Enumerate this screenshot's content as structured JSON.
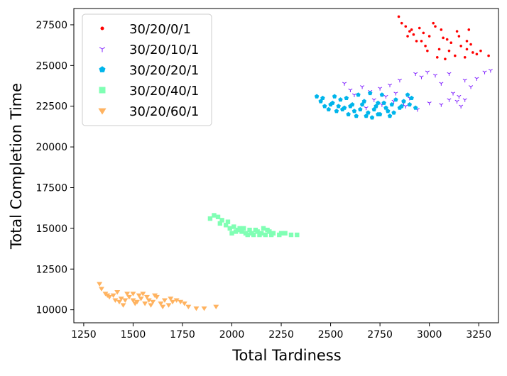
{
  "chart_data": {
    "type": "scatter",
    "title": "",
    "xlabel": "Total Tardiness",
    "ylabel": "Total Completion Time",
    "xlim": [
      1200,
      3350
    ],
    "ylim": [
      9200,
      28500
    ],
    "xticks": [
      1250,
      1500,
      1750,
      2000,
      2250,
      2500,
      2750,
      3000,
      3250
    ],
    "yticks": [
      10000,
      12500,
      15000,
      17500,
      20000,
      22500,
      25000,
      27500
    ],
    "grid": false,
    "legend_position": "top-left",
    "series": [
      {
        "name": "30/20/0/1",
        "color": "#ff0000",
        "marker": "point",
        "points": [
          [
            2845,
            28000
          ],
          [
            2860,
            27600
          ],
          [
            2880,
            27400
          ],
          [
            2900,
            27100
          ],
          [
            2920,
            26900
          ],
          [
            2950,
            27300
          ],
          [
            2970,
            27000
          ],
          [
            3000,
            26800
          ],
          [
            3030,
            27400
          ],
          [
            3060,
            27200
          ],
          [
            3090,
            26600
          ],
          [
            3110,
            26400
          ],
          [
            3140,
            27100
          ],
          [
            3160,
            26200
          ],
          [
            3190,
            26000
          ],
          [
            3220,
            25800
          ],
          [
            3240,
            25700
          ],
          [
            3260,
            25900
          ],
          [
            3300,
            25600
          ],
          [
            3020,
            27600
          ],
          [
            2935,
            26500
          ],
          [
            2980,
            26200
          ],
          [
            3050,
            26000
          ],
          [
            3100,
            25900
          ],
          [
            3180,
            25500
          ],
          [
            3210,
            26300
          ],
          [
            2890,
            26800
          ],
          [
            2960,
            26500
          ],
          [
            3070,
            26700
          ],
          [
            3130,
            25600
          ],
          [
            3150,
            26800
          ],
          [
            2990,
            25900
          ],
          [
            3040,
            25500
          ],
          [
            3080,
            25400
          ],
          [
            2910,
            27200
          ],
          [
            3200,
            27200
          ],
          [
            3190,
            26500
          ]
        ]
      },
      {
        "name": "30/20/10/1",
        "color": "#7f1fff",
        "marker": "tri_down",
        "points": [
          [
            2570,
            23900
          ],
          [
            2600,
            23500
          ],
          [
            2620,
            23200
          ],
          [
            2660,
            23700
          ],
          [
            2700,
            23400
          ],
          [
            2720,
            22900
          ],
          [
            2750,
            23600
          ],
          [
            2780,
            23100
          ],
          [
            2800,
            23800
          ],
          [
            2830,
            23300
          ],
          [
            2850,
            24100
          ],
          [
            2870,
            22700
          ],
          [
            2900,
            23000
          ],
          [
            2930,
            24500
          ],
          [
            2960,
            24300
          ],
          [
            2990,
            24600
          ],
          [
            3030,
            24400
          ],
          [
            3060,
            23900
          ],
          [
            3100,
            24500
          ],
          [
            3120,
            23300
          ],
          [
            3150,
            23100
          ],
          [
            3180,
            24100
          ],
          [
            3210,
            23700
          ],
          [
            3240,
            24200
          ],
          [
            3280,
            24600
          ],
          [
            3310,
            24700
          ],
          [
            3000,
            22700
          ],
          [
            3060,
            22600
          ],
          [
            3100,
            22900
          ],
          [
            3140,
            22800
          ],
          [
            3160,
            22500
          ],
          [
            3180,
            22900
          ],
          [
            2680,
            22400
          ],
          [
            2760,
            22600
          ],
          [
            2820,
            22800
          ],
          [
            2880,
            22500
          ],
          [
            2940,
            22300
          ]
        ]
      },
      {
        "name": "30/20/20/1",
        "color": "#00b5eb",
        "marker": "pentagon",
        "points": [
          [
            2430,
            23100
          ],
          [
            2450,
            22800
          ],
          [
            2470,
            22500
          ],
          [
            2490,
            22300
          ],
          [
            2510,
            22700
          ],
          [
            2530,
            22200
          ],
          [
            2550,
            22900
          ],
          [
            2570,
            22400
          ],
          [
            2590,
            22000
          ],
          [
            2610,
            22600
          ],
          [
            2630,
            21900
          ],
          [
            2650,
            22300
          ],
          [
            2670,
            22800
          ],
          [
            2690,
            22100
          ],
          [
            2710,
            21800
          ],
          [
            2730,
            22500
          ],
          [
            2750,
            22000
          ],
          [
            2770,
            22700
          ],
          [
            2790,
            22200
          ],
          [
            2810,
            22600
          ],
          [
            2830,
            22900
          ],
          [
            2850,
            22400
          ],
          [
            2870,
            22800
          ],
          [
            2890,
            23200
          ],
          [
            2910,
            23000
          ],
          [
            2930,
            22400
          ],
          [
            2460,
            23000
          ],
          [
            2520,
            23100
          ],
          [
            2580,
            23000
          ],
          [
            2640,
            23200
          ],
          [
            2700,
            23300
          ],
          [
            2760,
            23200
          ],
          [
            2540,
            22500
          ],
          [
            2600,
            22500
          ],
          [
            2660,
            22600
          ],
          [
            2720,
            22300
          ],
          [
            2780,
            22400
          ],
          [
            2820,
            22100
          ],
          [
            2500,
            22600
          ],
          [
            2620,
            22200
          ],
          [
            2680,
            21900
          ],
          [
            2740,
            22000
          ],
          [
            2800,
            21900
          ],
          [
            2740,
            22700
          ],
          [
            2560,
            22300
          ],
          [
            2860,
            22500
          ],
          [
            2900,
            22600
          ]
        ]
      },
      {
        "name": "30/20/40/1",
        "color": "#80ffb4",
        "marker": "square",
        "points": [
          [
            1890,
            15600
          ],
          [
            1910,
            15800
          ],
          [
            1930,
            15700
          ],
          [
            1950,
            15500
          ],
          [
            1970,
            15200
          ],
          [
            1990,
            15000
          ],
          [
            2010,
            15100
          ],
          [
            2030,
            14900
          ],
          [
            2050,
            14800
          ],
          [
            2070,
            14700
          ],
          [
            2090,
            14900
          ],
          [
            2110,
            14600
          ],
          [
            2130,
            14800
          ],
          [
            2150,
            14700
          ],
          [
            2170,
            14600
          ],
          [
            2190,
            14800
          ],
          [
            2210,
            14700
          ],
          [
            2240,
            14600
          ],
          [
            2270,
            14700
          ],
          [
            2300,
            14600
          ],
          [
            2330,
            14600
          ],
          [
            1940,
            15300
          ],
          [
            1980,
            15400
          ],
          [
            2000,
            14700
          ],
          [
            2060,
            15000
          ],
          [
            2120,
            14900
          ],
          [
            2160,
            15000
          ],
          [
            2200,
            14600
          ],
          [
            2080,
            14600
          ],
          [
            2020,
            14800
          ],
          [
            2100,
            14700
          ],
          [
            2140,
            14600
          ],
          [
            2180,
            14900
          ],
          [
            2250,
            14700
          ],
          [
            2040,
            15000
          ]
        ]
      },
      {
        "name": "30/20/60/1",
        "color": "#ffb360",
        "marker": "triangle_down",
        "points": [
          [
            1330,
            11600
          ],
          [
            1340,
            11300
          ],
          [
            1360,
            11000
          ],
          [
            1380,
            10800
          ],
          [
            1400,
            10900
          ],
          [
            1420,
            11100
          ],
          [
            1440,
            10700
          ],
          [
            1460,
            10600
          ],
          [
            1480,
            10800
          ],
          [
            1500,
            11000
          ],
          [
            1520,
            10500
          ],
          [
            1540,
            10700
          ],
          [
            1560,
            10400
          ],
          [
            1580,
            10600
          ],
          [
            1600,
            10500
          ],
          [
            1620,
            10800
          ],
          [
            1640,
            10400
          ],
          [
            1660,
            10600
          ],
          [
            1680,
            10300
          ],
          [
            1700,
            10500
          ],
          [
            1720,
            10600
          ],
          [
            1740,
            10500
          ],
          [
            1760,
            10400
          ],
          [
            1780,
            10200
          ],
          [
            1820,
            10100
          ],
          [
            1860,
            10100
          ],
          [
            1920,
            10200
          ],
          [
            1370,
            10900
          ],
          [
            1450,
            10300
          ],
          [
            1510,
            10400
          ],
          [
            1550,
            11000
          ],
          [
            1590,
            10300
          ],
          [
            1610,
            10900
          ],
          [
            1650,
            10200
          ],
          [
            1470,
            11000
          ],
          [
            1430,
            10500
          ],
          [
            1530,
            10900
          ],
          [
            1500,
            10600
          ],
          [
            1570,
            10800
          ],
          [
            1690,
            10700
          ],
          [
            1410,
            10600
          ]
        ]
      }
    ]
  }
}
